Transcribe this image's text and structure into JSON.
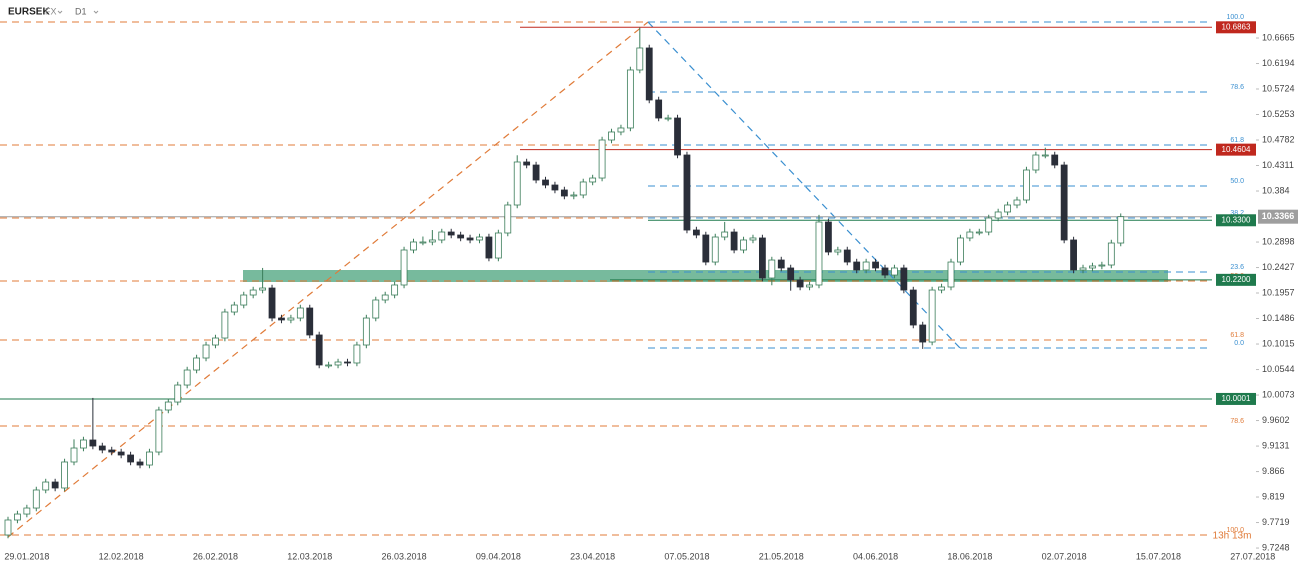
{
  "chart_data": {
    "type": "candlestick",
    "title": "EURSEK",
    "market": "FX",
    "interval": "D1",
    "categories": [
      null,
      null,
      "29.01.2018",
      null,
      null,
      null,
      null,
      null,
      null,
      null,
      null,
      null,
      "12.02.2018",
      null,
      null,
      null,
      null,
      null,
      null,
      null,
      null,
      null,
      "26.02.2018",
      null,
      null,
      null,
      null,
      null,
      null,
      null,
      null,
      null,
      "12.03.2018",
      null,
      null,
      null,
      null,
      null,
      null,
      null,
      null,
      null,
      "26.03.2018",
      null,
      null,
      null,
      null,
      null,
      null,
      null,
      null,
      null,
      "09.04.2018",
      null,
      null,
      null,
      null,
      null,
      null,
      null,
      null,
      null,
      "23.04.2018",
      null,
      null,
      null,
      null,
      null,
      null,
      null,
      null,
      null,
      "07.05.2018",
      null,
      null,
      null,
      null,
      null,
      null,
      null,
      null,
      null,
      "21.05.2018",
      null,
      null,
      null,
      null,
      null,
      null,
      null,
      null,
      null,
      "04.06.2018",
      null,
      null,
      null,
      null,
      null,
      null,
      null,
      null,
      null,
      "18.06.2018",
      null,
      null,
      null,
      null,
      null,
      null,
      null,
      null,
      null,
      "02.07.2018",
      null,
      null,
      null,
      null,
      null,
      null,
      null,
      null,
      null,
      "15.07.2018",
      null,
      null,
      null,
      null,
      null,
      null,
      null,
      null,
      null,
      "27.07.2018",
      null
    ],
    "ohlc": [
      [
        9.7489,
        9.7826,
        9.7429,
        9.7766
      ],
      [
        9.7766,
        9.7936,
        9.7706,
        9.7876
      ],
      [
        9.7876,
        9.8047,
        9.7816,
        9.7987
      ],
      [
        9.7987,
        9.838,
        9.7927,
        9.832
      ],
      [
        9.832,
        9.8527,
        9.826,
        9.8467
      ],
      [
        9.8467,
        9.8527,
        9.8297,
        9.8357
      ],
      [
        9.8357,
        9.8897,
        9.8297,
        9.8837
      ],
      [
        9.8837,
        9.9255,
        9.8777,
        9.9095
      ],
      [
        9.9095,
        9.9303,
        9.9035,
        9.9243
      ],
      [
        9.9243,
        10.002,
        9.9072,
        9.9132
      ],
      [
        9.9132,
        9.9192,
        9.8998,
        9.9058
      ],
      [
        9.9058,
        9.9118,
        9.8961,
        9.9021
      ],
      [
        9.9021,
        9.9081,
        9.8906,
        9.8966
      ],
      [
        9.8966,
        9.9026,
        9.8777,
        9.8837
      ],
      [
        9.8837,
        9.8897,
        9.8721,
        9.8781
      ],
      [
        9.8781,
        9.9081,
        9.8721,
        9.9021
      ],
      [
        9.9021,
        9.9857,
        9.8961,
        9.9797
      ],
      [
        9.9797,
        10.0004,
        9.9737,
        9.9944
      ],
      [
        9.9944,
        10.0318,
        9.9884,
        10.0258
      ],
      [
        10.0258,
        10.0595,
        10.0198,
        10.0535
      ],
      [
        10.0535,
        10.0817,
        10.0475,
        10.0757
      ],
      [
        10.0757,
        10.1057,
        10.0697,
        10.0997
      ],
      [
        10.0997,
        10.1186,
        10.0937,
        10.1126
      ],
      [
        10.1126,
        10.1666,
        10.1066,
        10.1606
      ],
      [
        10.1606,
        10.1795,
        10.1546,
        10.1735
      ],
      [
        10.1735,
        10.198,
        10.1675,
        10.192
      ],
      [
        10.192,
        10.2072,
        10.186,
        10.2012
      ],
      [
        10.2012,
        10.242,
        10.1952,
        10.2049
      ],
      [
        10.2049,
        10.2109,
        10.1435,
        10.1495
      ],
      [
        10.1495,
        10.1555,
        10.1399,
        10.1459
      ],
      [
        10.1459,
        10.1555,
        10.1399,
        10.1495
      ],
      [
        10.1495,
        10.174,
        10.1435,
        10.168
      ],
      [
        10.168,
        10.174,
        10.1122,
        10.1182
      ],
      [
        10.1182,
        10.1242,
        10.0568,
        10.0628
      ],
      [
        10.0628,
        10.0688,
        10.0568,
        10.0628
      ],
      [
        10.0628,
        10.0743,
        10.0568,
        10.0683
      ],
      [
        10.0683,
        10.0743,
        10.0605,
        10.0665
      ],
      [
        10.0665,
        10.1057,
        10.0605,
        10.0997
      ],
      [
        10.0997,
        10.1555,
        10.0937,
        10.1495
      ],
      [
        10.1495,
        10.1888,
        10.1435,
        10.1828
      ],
      [
        10.1828,
        10.198,
        10.1768,
        10.192
      ],
      [
        10.192,
        10.2165,
        10.186,
        10.2105
      ],
      [
        10.2105,
        10.2811,
        10.2045,
        10.2751
      ],
      [
        10.2751,
        10.2959,
        10.2691,
        10.2899
      ],
      [
        10.2899,
        10.3,
        10.2839,
        10.2899
      ],
      [
        10.2899,
        10.312,
        10.2839,
        10.2936
      ],
      [
        10.2936,
        10.3143,
        10.2876,
        10.3083
      ],
      [
        10.3083,
        10.3143,
        10.2968,
        10.3028
      ],
      [
        10.3028,
        10.3088,
        10.2913,
        10.2973
      ],
      [
        10.2973,
        10.3033,
        10.2876,
        10.2936
      ],
      [
        10.2936,
        10.3051,
        10.2876,
        10.2991
      ],
      [
        10.2991,
        10.3051,
        10.2543,
        10.2603
      ],
      [
        10.2603,
        10.3125,
        10.2543,
        10.3065
      ],
      [
        10.3065,
        10.3642,
        10.3005,
        10.3582
      ],
      [
        10.3582,
        10.45,
        10.3522,
        10.4376
      ],
      [
        10.4376,
        10.4436,
        10.426,
        10.432
      ],
      [
        10.432,
        10.438,
        10.3983,
        10.4043
      ],
      [
        10.4043,
        10.4103,
        10.3891,
        10.3951
      ],
      [
        10.3951,
        10.4011,
        10.3799,
        10.3859
      ],
      [
        10.3859,
        10.3919,
        10.3688,
        10.3748
      ],
      [
        10.3748,
        10.3827,
        10.3688,
        10.3767
      ],
      [
        10.3767,
        10.4067,
        10.3707,
        10.4007
      ],
      [
        10.4007,
        10.414,
        10.3947,
        10.408
      ],
      [
        10.408,
        10.4842,
        10.402,
        10.4782
      ],
      [
        10.4782,
        10.499,
        10.4722,
        10.493
      ],
      [
        10.493,
        10.5064,
        10.487,
        10.5004
      ],
      [
        10.5004,
        10.6135,
        10.4944,
        10.6075
      ],
      [
        10.6075,
        10.6863,
        10.6015,
        10.6481
      ],
      [
        10.6481,
        10.6541,
        10.5461,
        10.5521
      ],
      [
        10.5521,
        10.5581,
        10.5128,
        10.5188
      ],
      [
        10.5188,
        10.5248,
        10.5128,
        10.5188
      ],
      [
        10.5188,
        10.5248,
        10.4445,
        10.4505
      ],
      [
        10.4505,
        10.4565,
        10.306,
        10.312
      ],
      [
        10.312,
        10.318,
        10.2968,
        10.3028
      ],
      [
        10.3028,
        10.3088,
        10.2469,
        10.2529
      ],
      [
        10.2529,
        10.3051,
        10.2469,
        10.2991
      ],
      [
        10.2991,
        10.327,
        10.2931,
        10.3083
      ],
      [
        10.3083,
        10.3143,
        10.2691,
        10.2751
      ],
      [
        10.2751,
        10.2996,
        10.2691,
        10.2936
      ],
      [
        10.2936,
        10.3033,
        10.2876,
        10.2973
      ],
      [
        10.2973,
        10.3033,
        10.2174,
        10.2234
      ],
      [
        10.2234,
        10.2626,
        10.21,
        10.2566
      ],
      [
        10.2566,
        10.2626,
        10.2359,
        10.2419
      ],
      [
        10.2419,
        10.2479,
        10.2,
        10.2197
      ],
      [
        10.2197,
        10.2257,
        10.2008,
        10.2068
      ],
      [
        10.2068,
        10.2165,
        10.2008,
        10.2105
      ],
      [
        10.2105,
        10.34,
        10.2045,
        10.3268
      ],
      [
        10.3268,
        10.3328,
        10.2654,
        10.2714
      ],
      [
        10.2714,
        10.2811,
        10.2654,
        10.2751
      ],
      [
        10.2751,
        10.2811,
        10.2469,
        10.2529
      ],
      [
        10.2529,
        10.2589,
        10.2322,
        10.2382
      ],
      [
        10.2382,
        10.2589,
        10.2322,
        10.2529
      ],
      [
        10.2529,
        10.2589,
        10.2359,
        10.2419
      ],
      [
        10.2419,
        10.2479,
        10.2229,
        10.2289
      ],
      [
        10.2289,
        10.2479,
        10.2229,
        10.2419
      ],
      [
        10.2419,
        10.2479,
        10.1952,
        10.2012
      ],
      [
        10.2012,
        10.2072,
        10.1306,
        10.1366
      ],
      [
        10.1366,
        10.1426,
        10.0925,
        10.1052
      ],
      [
        10.1052,
        10.2072,
        10.0992,
        10.2012
      ],
      [
        10.2012,
        10.2128,
        10.1952,
        10.2068
      ],
      [
        10.2068,
        10.2589,
        10.2008,
        10.2529
      ],
      [
        10.2529,
        10.3033,
        10.2469,
        10.2973
      ],
      [
        10.2973,
        10.3143,
        10.2913,
        10.3083
      ],
      [
        10.3083,
        10.3143,
        10.3023,
        10.3083
      ],
      [
        10.3083,
        10.3402,
        10.3023,
        10.3342
      ],
      [
        10.3342,
        10.3513,
        10.3282,
        10.3453
      ],
      [
        10.3453,
        10.3642,
        10.3393,
        10.3582
      ],
      [
        10.3582,
        10.3734,
        10.3522,
        10.3674
      ],
      [
        10.3674,
        10.4288,
        10.3614,
        10.4228
      ],
      [
        10.4228,
        10.4565,
        10.4168,
        10.4505
      ],
      [
        10.4505,
        10.464,
        10.4445,
        10.4505
      ],
      [
        10.4505,
        10.4565,
        10.426,
        10.432
      ],
      [
        10.432,
        10.438,
        10.2876,
        10.2936
      ],
      [
        10.2936,
        10.2996,
        10.2322,
        10.2382
      ],
      [
        10.2382,
        10.2479,
        10.2322,
        10.2419
      ],
      [
        10.2419,
        10.2516,
        10.2359,
        10.2456
      ],
      [
        10.2456,
        10.2534,
        10.2396,
        10.2474
      ],
      [
        10.2474,
        10.294,
        10.2414,
        10.288
      ],
      [
        10.288,
        10.3426,
        10.282,
        10.3366
      ],
      null,
      null,
      null,
      null,
      null,
      null,
      null,
      null,
      null,
      null,
      null,
      null,
      null,
      null,
      null
    ],
    "up_color": "#3b7d5a",
    "down_color": "#2a2e39",
    "ylim": [
      9.7212,
      10.7367
    ],
    "yticks": [
      10.6665,
      10.6194,
      10.5724,
      10.5253,
      10.4782,
      10.4311,
      10.384,
      10.2898,
      10.2427,
      10.1957,
      10.1486,
      10.1015,
      10.0544,
      10.0073,
      9.9602,
      9.9131,
      9.866,
      9.819,
      9.7719,
      9.7248
    ],
    "fibonacci": [
      {
        "color": "#e07b39",
        "levels": [
          {
            "ratio": null,
            "value": 10.6961
          },
          {
            "ratio": null,
            "value": 10.469
          },
          {
            "ratio": null,
            "value": 10.3342
          },
          {
            "ratio": {
              "value": 50,
              "label": "50.0"
            },
            "value": 10.2179
          },
          {
            "ratio": 61.8,
            "value": 10.1089
          },
          {
            "ratio": 78.6,
            "value": 9.9501
          },
          {
            "ratio": {
              "value": 100,
              "label": "100.0"
            },
            "value": 9.7489
          }
        ]
      },
      {
        "color": "#3a8fd0",
        "levels": [
          {
            "ratio": {
              "value": 100,
              "label": "100.0"
            },
            "value": 10.6961
          },
          {
            "ratio": 78.6,
            "value": 10.5668
          },
          {
            "ratio": 61.8,
            "value": 10.469
          },
          {
            "ratio": {
              "value": 50,
              "label": "50.0"
            },
            "value": 10.3933
          },
          {
            "ratio": 38.2,
            "value": 10.3342
          },
          {
            "ratio": 23.6,
            "value": 10.2345
          },
          {
            "ratio": {
              "value": 0,
              "label": "0.0"
            },
            "value": 10.0942
          }
        ]
      }
    ],
    "price_lines": [
      {
        "value": 10.6863,
        "color": "#c0281e"
      },
      {
        "value": 10.4604,
        "color": "#c0281e"
      },
      {
        "value": {
          "value": 10.33,
          "label": "10.3300"
        },
        "color": "#1f7a4d"
      },
      {
        "value": {
          "value": 10.22,
          "label": "10.2200"
        },
        "color": "#1f7a4d"
      },
      {
        "value": 10.0001,
        "color": "#1f7a4d"
      }
    ],
    "current_price": {
      "value": 10.3366,
      "color": "#9e9e9e"
    },
    "countdown": "13h 13m"
  }
}
